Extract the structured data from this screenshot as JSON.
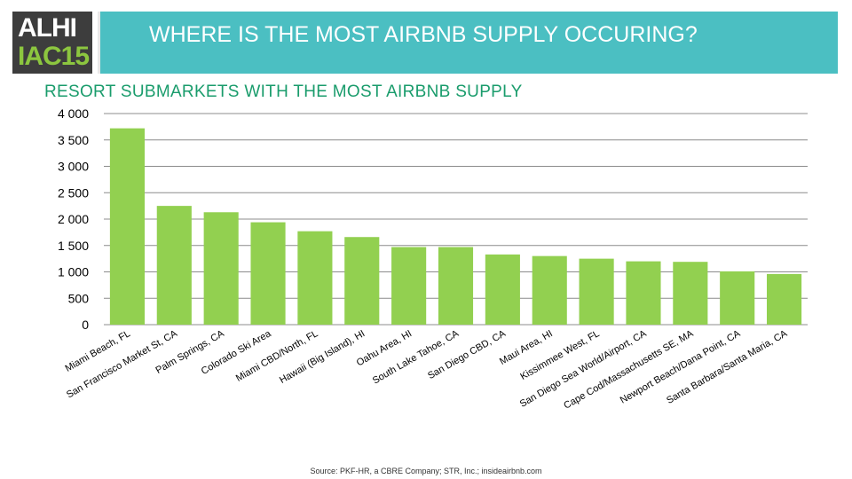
{
  "logo": {
    "line1": "ALHI",
    "line2": "IAC15"
  },
  "header": {
    "title": "WHERE IS THE MOST AIRBNB SUPPLY OCCURING?"
  },
  "colors": {
    "header_bg": "#4bbfc2",
    "bar": "#92d050",
    "chart_title": "#1a9c6c",
    "logo_bg": "#3d3d3d",
    "logo_accent": "#8cc63f"
  },
  "chart_data": {
    "type": "bar",
    "title": "RESORT SUBMARKETS WITH THE MOST AIRBNB SUPPLY",
    "categories": [
      "Miami Beach, FL",
      "San Francisco Market St, CA",
      "Palm Springs, CA",
      "Colorado Ski Area",
      "Miami CBD/North, FL",
      "Hawaii (Big Island), HI",
      "Oahu Area, HI",
      "South Lake Tahoe, CA",
      "San Diego CBD, CA",
      "Maui Area, HI",
      "Kissimmee West, FL",
      "San Diego Sea World/Airport, CA",
      "Cape Cod/Massachusetts SE, MA",
      "Newport Beach/Dana Point, CA",
      "Santa Barbara/Santa Maria, CA"
    ],
    "values": [
      3720,
      2250,
      2130,
      1940,
      1770,
      1660,
      1470,
      1470,
      1330,
      1300,
      1250,
      1200,
      1190,
      1010,
      960
    ],
    "ylim": [
      0,
      4000
    ],
    "yticks": [
      "0",
      "500",
      "1 000",
      "1 500",
      "2 000",
      "2 500",
      "3 000",
      "3 500",
      "4 000"
    ],
    "grid": true,
    "legend": "none"
  },
  "footer": {
    "source": "Source: PKF-HR, a CBRE Company; STR, Inc.; insideairbnb.com"
  }
}
